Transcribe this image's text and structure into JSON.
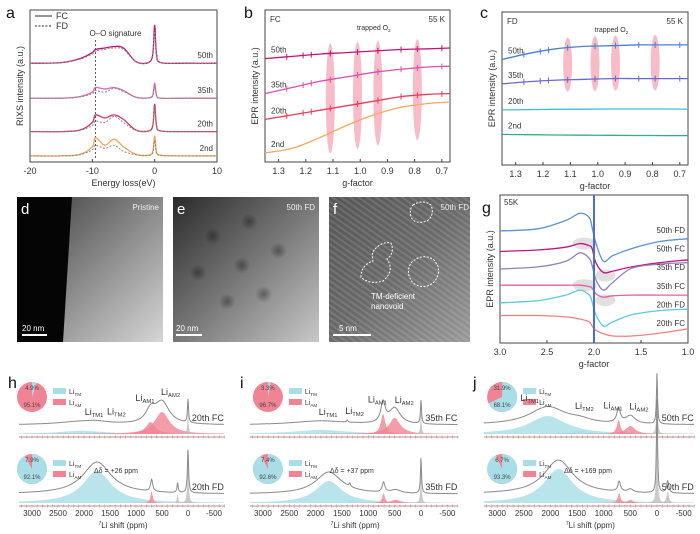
{
  "panel_letters": {
    "a": "a",
    "b": "b",
    "c": "c",
    "d": "d",
    "e": "e",
    "f": "f",
    "g": "g",
    "h": "h",
    "i": "i",
    "j": "j"
  },
  "images": {
    "d": {
      "caption": "Pristine",
      "scale_bar": "20 nm"
    },
    "e": {
      "caption": "50th FD",
      "scale_bar": "20 nm"
    },
    "f": {
      "caption": "50th FD",
      "scale_bar": "5 nm",
      "annotation": [
        "TM-deficient",
        "nanovoid"
      ]
    }
  },
  "chart_data": [
    {
      "id": "a",
      "type": "line",
      "xlabel": "Energy loss(eV)",
      "ylabel": "RIXS intensity (a.u.)",
      "xlim": [
        -20,
        10
      ],
      "ylim": [
        0,
        5
      ],
      "xticks": [
        "-20",
        "-10",
        "0",
        "10"
      ],
      "legend": [
        {
          "label": "FC",
          "style": "solid"
        },
        {
          "label": "FD",
          "style": "dotted"
        }
      ],
      "legend_position": "top-left",
      "annotation": {
        "text": "O–O signature",
        "x": -9.5
      },
      "x": [
        -20,
        -15,
        -12,
        -10,
        -9.5,
        -8,
        -6.5,
        -5,
        -3,
        -1,
        -0.3,
        0,
        0.3,
        1,
        5,
        10
      ],
      "series": [
        {
          "label": "50th",
          "color": "#c0157a",
          "FC": [
            3.25,
            3.27,
            3.4,
            3.6,
            3.7,
            3.75,
            3.8,
            3.75,
            3.3,
            3.27,
            3.55,
            4.5,
            3.55,
            3.27,
            3.25,
            3.25
          ],
          "FD": [
            3.25,
            3.27,
            3.38,
            3.55,
            3.65,
            3.7,
            3.75,
            3.7,
            3.3,
            3.27,
            3.5,
            4.3,
            3.5,
            3.27,
            3.25,
            3.25
          ]
        },
        {
          "label": "35th",
          "color": "#d46ab8",
          "FC": [
            2.1,
            2.1,
            2.15,
            2.3,
            2.45,
            2.4,
            2.45,
            2.35,
            2.13,
            2.11,
            2.2,
            2.6,
            2.2,
            2.1,
            2.1,
            2.1
          ],
          "FD": [
            2.1,
            2.1,
            2.14,
            2.25,
            2.35,
            2.3,
            2.42,
            2.32,
            2.13,
            2.11,
            2.18,
            2.5,
            2.18,
            2.1,
            2.1,
            2.1
          ]
        },
        {
          "label": "20th",
          "color": "#c8385c",
          "FC": [
            1.0,
            1.0,
            1.05,
            1.3,
            1.55,
            1.45,
            1.55,
            1.4,
            1.05,
            1.02,
            1.2,
            1.9,
            1.2,
            1.02,
            1.0,
            1.0
          ],
          "FD": [
            1.0,
            1.0,
            1.04,
            1.2,
            1.35,
            1.3,
            1.5,
            1.3,
            1.04,
            1.02,
            1.15,
            1.8,
            1.15,
            1.02,
            1.0,
            1.0
          ]
        },
        {
          "label": "2nd",
          "color": "#f2a35e",
          "FC": [
            0.2,
            0.2,
            0.25,
            0.5,
            0.8,
            0.55,
            0.75,
            0.5,
            0.25,
            0.22,
            0.35,
            0.85,
            0.35,
            0.22,
            0.2,
            0.2
          ],
          "FD": [
            0.2,
            0.2,
            0.24,
            0.4,
            0.55,
            0.45,
            0.55,
            0.35,
            0.24,
            0.22,
            0.3,
            0.7,
            0.3,
            0.22,
            0.2,
            0.2
          ]
        }
      ]
    },
    {
      "id": "b",
      "type": "line",
      "corner_left": "FC",
      "corner_right": "55 K",
      "xlabel": "g-factor",
      "ylabel": "EPR intensity (a.u.)",
      "xlim": [
        1.35,
        0.67
      ],
      "ylim": [
        0,
        10
      ],
      "xticks": [
        "1.3",
        "1.2",
        "1.1",
        "1.0",
        "0.9",
        "0.8",
        "0.7"
      ],
      "annotation": {
        "text": "trapped O",
        "sub": "2",
        "g_values": [
          1.11,
          1.01,
          0.935,
          0.79
        ]
      },
      "x": [
        1.35,
        1.25,
        1.15,
        1.05,
        0.95,
        0.85,
        0.75,
        0.67
      ],
      "series": [
        {
          "label": "50th",
          "color": "#c0157a",
          "y": [
            6.8,
            6.95,
            7.1,
            7.2,
            7.3,
            7.4,
            7.45,
            7.5
          ],
          "marked": true
        },
        {
          "label": "35th",
          "color": "#d850b0",
          "y": [
            4.5,
            4.9,
            5.3,
            5.6,
            5.9,
            6.1,
            6.25,
            6.3
          ],
          "marked": true
        },
        {
          "label": "20th",
          "color": "#e0405a",
          "y": [
            2.8,
            3.1,
            3.4,
            3.7,
            4.0,
            4.3,
            4.45,
            4.5
          ],
          "marked": true
        },
        {
          "label": "2nd",
          "color": "#f5a860",
          "y": [
            0.6,
            0.9,
            1.6,
            2.4,
            3.1,
            3.6,
            3.85,
            3.95
          ],
          "marked": false
        }
      ]
    },
    {
      "id": "c",
      "type": "line",
      "corner_left": "FD",
      "corner_right": "55 K",
      "xlabel": "g-factor",
      "ylabel": "EPR intensity (a.u.)",
      "xlim": [
        1.35,
        0.67
      ],
      "ylim": [
        0,
        10
      ],
      "xticks": [
        "1.3",
        "1.2",
        "1.1",
        "1.0",
        "0.9",
        "0.8",
        "0.7"
      ],
      "annotation": {
        "text": "trapped O",
        "sub": "2",
        "g_values": [
          1.11,
          1.01,
          0.935,
          0.79
        ]
      },
      "x": [
        1.35,
        1.25,
        1.15,
        1.05,
        0.95,
        0.85,
        0.75,
        0.67
      ],
      "series": [
        {
          "label": "50th",
          "color": "#4a7fd0",
          "y": [
            6.9,
            7.3,
            7.6,
            7.75,
            7.8,
            7.85,
            7.85,
            7.85
          ],
          "marked": true
        },
        {
          "label": "35th",
          "color": "#6a6ac8",
          "y": [
            5.3,
            5.45,
            5.55,
            5.6,
            5.65,
            5.65,
            5.65,
            5.65
          ],
          "marked": true
        },
        {
          "label": "20th",
          "color": "#40c0d0",
          "y": [
            3.6,
            3.62,
            3.64,
            3.65,
            3.66,
            3.66,
            3.66,
            3.65
          ],
          "marked": false
        },
        {
          "label": "2nd",
          "color": "#30b080",
          "y": [
            2.0,
            1.98,
            1.96,
            1.95,
            1.94,
            1.93,
            1.92,
            1.92
          ],
          "marked": false
        }
      ]
    },
    {
      "id": "g",
      "type": "line",
      "corner_left": "55K",
      "xlabel": "g-factor",
      "ylabel": "EPR intensity (a.u.)",
      "xlim": [
        3.0,
        1.0
      ],
      "ylim": [
        -0.5,
        10
      ],
      "xticks": [
        "3.0",
        "2.5",
        "2.0",
        "1.5",
        "1.0"
      ],
      "marker_line_g": 2.0,
      "x": [
        3.0,
        2.6,
        2.3,
        2.15,
        2.05,
        2.02,
        1.98,
        1.9,
        1.8,
        1.6,
        1.3,
        1.0
      ],
      "series": [
        {
          "label": "50th FD",
          "color": "#6090d0",
          "y": [
            7.45,
            7.6,
            8.2,
            8.7,
            8.4,
            7.7,
            6.6,
            5.3,
            5.7,
            6.2,
            6.7,
            6.9
          ],
          "highlight": false
        },
        {
          "label": "50th FC",
          "color": "#c0157a",
          "y": [
            6.0,
            6.1,
            6.3,
            6.55,
            6.4,
            6.2,
            5.2,
            4.5,
            4.6,
            4.9,
            5.2,
            5.4
          ],
          "highlight": true
        },
        {
          "label": "35th FD",
          "color": "#9080c0",
          "y": [
            4.75,
            4.9,
            5.3,
            5.9,
            5.5,
            5.0,
            4.0,
            3.25,
            3.8,
            4.8,
            5.1,
            5.2
          ],
          "highlight": false
        },
        {
          "label": "35th FC",
          "color": "#e060a0",
          "y": [
            3.6,
            3.6,
            3.6,
            3.6,
            3.5,
            3.4,
            3.0,
            2.75,
            2.85,
            2.9,
            2.9,
            2.9
          ],
          "highlight": true
        },
        {
          "label": "20th FD",
          "color": "#60c8d8",
          "y": [
            2.35,
            2.5,
            2.9,
            3.25,
            2.9,
            2.4,
            1.5,
            0.7,
            1.0,
            1.5,
            1.8,
            1.9
          ],
          "highlight": false
        },
        {
          "label": "20th FC",
          "color": "#f08080",
          "y": [
            1.45,
            1.45,
            1.35,
            1.2,
            1.0,
            0.7,
            0.4,
            0.15,
            0.0,
            0.0,
            0.2,
            0.5
          ],
          "highlight": false
        }
      ]
    },
    {
      "id": "h",
      "type": "area",
      "xlabel_sup": "7",
      "xlabel": "Li shift (ppm)",
      "xlim": [
        3250,
        -700
      ],
      "xticks": [
        "3000",
        "2500",
        "2000",
        "1500",
        "1000",
        "500",
        "0",
        "-500"
      ],
      "colors": {
        "TM": "#a9dde7",
        "AM": "#f08494",
        "dia": "#bdbdbd"
      },
      "legend": [
        {
          "main": "Li",
          "sub": "TM"
        },
        {
          "main": "Li",
          "sub": "AM"
        }
      ],
      "subplots": [
        {
          "label": "20th FC",
          "pie": {
            "TM": "4.9%",
            "AM": "95.1%"
          },
          "delta": "",
          "components": [
            {
              "type": "TM",
              "center": 2050,
              "width": 550,
              "amp": 0.08
            },
            {
              "type": "TM",
              "center": 1750,
              "width": 250,
              "amp": 0.04
            },
            {
              "type": "AM",
              "center": 720,
              "width": 110,
              "amp": 0.3
            },
            {
              "type": "AM",
              "center": 500,
              "width": 170,
              "amp": 0.55
            },
            {
              "type": "dia",
              "center": 0,
              "width": 12,
              "amp": 0.6
            }
          ],
          "peak_labels": [
            {
              "main": "Li",
              "sub": "TM1",
              "ppm": 2050
            },
            {
              "main": "Li",
              "sub": "TM2",
              "ppm": 1750
            },
            {
              "main": "Li",
              "sub": "AM1",
              "ppm": 760
            },
            {
              "main": "Li",
              "sub": "AM2",
              "ppm": 480
            }
          ]
        },
        {
          "label": "20th FD",
          "pie": {
            "TM": "92.1%",
            "AM": "7.9%"
          },
          "delta": "Δδ = +26 ppm",
          "components": [
            {
              "type": "TM",
              "center": 1750,
              "width": 330,
              "amp": 0.8
            },
            {
              "type": "AM",
              "center": 700,
              "width": 25,
              "amp": 0.3
            },
            {
              "type": "dia",
              "center": 200,
              "width": 14,
              "amp": 0.25
            },
            {
              "type": "dia",
              "center": 0,
              "width": 14,
              "amp": 1.1
            }
          ],
          "peak_labels": []
        }
      ]
    },
    {
      "id": "i",
      "type": "area",
      "xlabel_sup": "7",
      "xlabel": "Li shift (ppm)",
      "xlim": [
        3250,
        -700
      ],
      "xticks": [
        "3000",
        "2500",
        "2000",
        "1500",
        "1000",
        "500",
        "0",
        "-500"
      ],
      "colors": {
        "TM": "#a9dde7",
        "AM": "#f08494",
        "dia": "#bdbdbd"
      },
      "legend": [
        {
          "main": "Li",
          "sub": "TM"
        },
        {
          "main": "Li",
          "sub": "AM"
        }
      ],
      "subplots": [
        {
          "label": "35th FC",
          "pie": {
            "TM": "3.3%",
            "AM": "96.7%"
          },
          "delta": "",
          "components": [
            {
              "type": "TM",
              "center": 1900,
              "width": 650,
              "amp": 0.1
            },
            {
              "type": "TM",
              "center": 1400,
              "width": 15,
              "amp": 0.05
            },
            {
              "type": "AM",
              "center": 720,
              "width": 50,
              "amp": 0.5
            },
            {
              "type": "AM",
              "center": 500,
              "width": 130,
              "amp": 0.4
            },
            {
              "type": "dia",
              "center": 0,
              "width": 12,
              "amp": 0.6
            }
          ],
          "peak_labels": [
            {
              "main": "Li",
              "sub": "TM1",
              "ppm": 1850
            },
            {
              "main": "Li",
              "sub": "TM2",
              "ppm": 1400
            },
            {
              "main": "Li",
              "sub": "AM1",
              "ppm": 760
            },
            {
              "main": "Li",
              "sub": "AM2",
              "ppm": 460
            }
          ]
        },
        {
          "label": "35th FD",
          "pie": {
            "TM": "92.6%",
            "AM": "7.4%"
          },
          "delta": "Δδ = +37 ppm",
          "components": [
            {
              "type": "TM",
              "center": 1750,
              "width": 300,
              "amp": 0.55
            },
            {
              "type": "TM",
              "center": 1350,
              "width": 15,
              "amp": 0.08
            },
            {
              "type": "AM",
              "center": 710,
              "width": 30,
              "amp": 0.25
            },
            {
              "type": "AM",
              "center": 480,
              "width": 110,
              "amp": 0.08
            },
            {
              "type": "dia",
              "center": 0,
              "width": 12,
              "amp": 0.9
            }
          ],
          "peak_labels": []
        }
      ]
    },
    {
      "id": "j",
      "type": "area",
      "xlabel_sup": "7",
      "xlabel": "Li shift (ppm)",
      "xlim": [
        3250,
        -700
      ],
      "xticks": [
        "3000",
        "2500",
        "2000",
        "1500",
        "1000",
        "500",
        "0",
        "-500"
      ],
      "colors": {
        "TM": "#a9dde7",
        "AM": "#f08494",
        "dia": "#bdbdbd"
      },
      "legend": [
        {
          "main": "Li",
          "sub": "TM"
        },
        {
          "main": "Li",
          "sub": "AM"
        }
      ],
      "subplots": [
        {
          "label": "50th FC",
          "pie": {
            "TM": "68.1%",
            "AM": "31.9%"
          },
          "delta": "",
          "components": [
            {
              "type": "TM",
              "center": 2050,
              "width": 420,
              "amp": 0.45
            },
            {
              "type": "TM",
              "center": 1450,
              "width": 250,
              "amp": 0.08
            },
            {
              "type": "AM",
              "center": 720,
              "width": 40,
              "amp": 0.35
            },
            {
              "type": "AM",
              "center": 500,
              "width": 110,
              "amp": 0.2
            },
            {
              "type": "dia",
              "center": 0,
              "width": 12,
              "amp": 1.3
            }
          ],
          "peak_labels": [
            {
              "main": "Li",
              "sub": "TM1",
              "ppm": 2100
            },
            {
              "main": "Li",
              "sub": "TM2",
              "ppm": 1500
            },
            {
              "main": "Li",
              "sub": "AM1",
              "ppm": 760
            },
            {
              "main": "Li",
              "sub": "AM2",
              "ppm": 480
            }
          ]
        },
        {
          "label": "50th FD",
          "pie": {
            "TM": "93.3%",
            "AM": "6.7%"
          },
          "delta": "Δδ = +169 ppm",
          "components": [
            {
              "type": "TM",
              "center": 1850,
              "width": 330,
              "amp": 0.85
            },
            {
              "type": "AM",
              "center": 710,
              "width": 30,
              "amp": 0.25
            },
            {
              "type": "AM",
              "center": 500,
              "width": 60,
              "amp": 0.08
            },
            {
              "type": "dia",
              "center": 0,
              "width": 12,
              "amp": 2.4
            },
            {
              "type": "dia",
              "center": -200,
              "width": 25,
              "amp": 0.3
            }
          ],
          "peak_labels": []
        }
      ]
    }
  ]
}
